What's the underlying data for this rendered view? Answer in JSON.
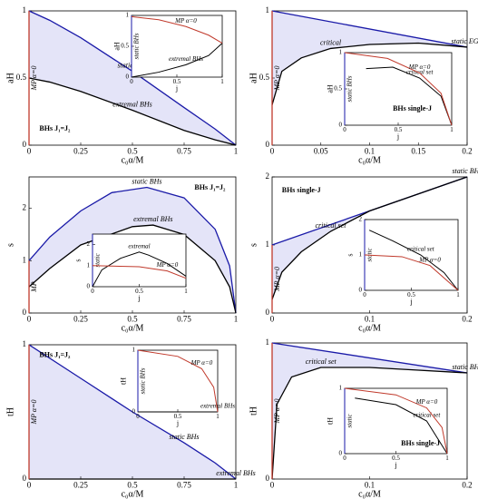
{
  "chart_data": [
    {
      "type": "line",
      "xlim": [
        0,
        1
      ],
      "ylim": [
        0,
        1
      ],
      "xticks": [
        0,
        0.25,
        0.5,
        0.75,
        1
      ],
      "yticks": [
        0,
        0.5,
        1
      ],
      "xlabel": "c₀α/M",
      "ylabel": "aH",
      "fill_color": "#e4e4f8",
      "annotations": [
        "BHs J₁=J₂"
      ],
      "series": [
        {
          "name": "static BHs",
          "color": "#1a1aa8",
          "x": [
            0,
            0.1,
            0.25,
            0.5,
            0.75,
            0.9,
            1
          ],
          "values": [
            1,
            0.93,
            0.8,
            0.55,
            0.28,
            0.12,
            0
          ]
        },
        {
          "name": "extremal BHs",
          "color": "#000000",
          "x": [
            0,
            0.1,
            0.25,
            0.5,
            0.75,
            0.9,
            1
          ],
          "values": [
            0.5,
            0.47,
            0.4,
            0.26,
            0.11,
            0.04,
            0
          ]
        },
        {
          "name": "MP α=0",
          "color": "#c0392b",
          "x": [
            0,
            0
          ],
          "values": [
            0,
            1
          ]
        }
      ]
    },
    {
      "type": "line",
      "xlim": [
        0,
        1
      ],
      "ylim": [
        0,
        1
      ],
      "xticks": [
        0,
        0.5,
        1
      ],
      "yticks": [
        0,
        0.5,
        1
      ],
      "xlabel": "j",
      "ylabel": "aH",
      "annotations": [],
      "series": [
        {
          "name": "static BHs",
          "color": "#1a1aa8",
          "x": [
            0,
            0
          ],
          "values": [
            0,
            1
          ]
        },
        {
          "name": "extremal BHs",
          "color": "#000000",
          "x": [
            0,
            0.3,
            0.6,
            0.85,
            1
          ],
          "values": [
            0,
            0.08,
            0.2,
            0.35,
            0.55
          ]
        },
        {
          "name": "MP α=0",
          "color": "#c0392b",
          "x": [
            0,
            0.3,
            0.6,
            0.85,
            1
          ],
          "values": [
            0.98,
            0.93,
            0.82,
            0.68,
            0.55
          ]
        }
      ]
    },
    {
      "type": "line",
      "xlim": [
        0,
        0.2
      ],
      "ylim": [
        0,
        1
      ],
      "xticks": [
        0,
        0.05,
        0.1,
        0.15,
        0.2
      ],
      "yticks": [
        0,
        0.5,
        1
      ],
      "xlabel": "c₀α/M",
      "ylabel": "aH",
      "fill_color": "#e4e4f8",
      "annotations": [],
      "series": [
        {
          "name": "static EGB",
          "color": "#1a1aa8",
          "x": [
            0,
            0.2
          ],
          "values": [
            1,
            0.73
          ]
        },
        {
          "name": "critical",
          "color": "#000000",
          "x": [
            0,
            0.01,
            0.03,
            0.06,
            0.1,
            0.15,
            0.2
          ],
          "values": [
            0.3,
            0.55,
            0.65,
            0.72,
            0.75,
            0.76,
            0.73
          ]
        },
        {
          "name": "MP α=0",
          "color": "#c0392b",
          "x": [
            0,
            0
          ],
          "values": [
            0,
            1
          ]
        }
      ]
    },
    {
      "type": "line",
      "xlim": [
        0,
        1
      ],
      "ylim": [
        0,
        1
      ],
      "xticks": [
        0,
        0.5,
        1
      ],
      "yticks": [
        0,
        0.5,
        1
      ],
      "xlabel": "j",
      "ylabel": "aH",
      "annotations": [
        "BHs single-J"
      ],
      "series": [
        {
          "name": "static BHs",
          "color": "#1a1aa8",
          "x": [
            0,
            0
          ],
          "values": [
            0,
            1
          ]
        },
        {
          "name": "critical set",
          "color": "#000000",
          "x": [
            0.2,
            0.45,
            0.7,
            0.9,
            1
          ],
          "values": [
            0.78,
            0.8,
            0.65,
            0.4,
            0
          ]
        },
        {
          "name": "MP α=0",
          "color": "#c0392b",
          "x": [
            0,
            0.4,
            0.7,
            0.9,
            1
          ],
          "values": [
            1,
            0.92,
            0.72,
            0.44,
            0
          ]
        }
      ]
    },
    {
      "type": "line",
      "xlim": [
        0,
        1
      ],
      "ylim": [
        0,
        2.6
      ],
      "xticks": [
        0,
        0.25,
        0.5,
        0.75,
        1
      ],
      "yticks": [
        0,
        1,
        2
      ],
      "xlabel": "c₀α/M",
      "ylabel": "s",
      "fill_color": "#e4e4f8",
      "annotations": [
        "BHs J₁=J₂"
      ],
      "series": [
        {
          "name": "static BHs",
          "color": "#1a1aa8",
          "x": [
            0,
            0.1,
            0.25,
            0.4,
            0.57,
            0.75,
            0.9,
            0.97,
            1
          ],
          "values": [
            1,
            1.45,
            1.95,
            2.3,
            2.4,
            2.2,
            1.6,
            0.9,
            0
          ]
        },
        {
          "name": "extremal BHs",
          "color": "#000000",
          "x": [
            0,
            0.1,
            0.25,
            0.5,
            0.6,
            0.75,
            0.9,
            0.97,
            1
          ],
          "values": [
            0.5,
            0.85,
            1.3,
            1.65,
            1.68,
            1.5,
            1,
            0.5,
            0
          ]
        },
        {
          "name": "MP",
          "color": "#c0392b",
          "x": [
            0,
            0
          ],
          "values": [
            0,
            1
          ]
        }
      ]
    },
    {
      "type": "line",
      "xlim": [
        0,
        1
      ],
      "ylim": [
        0,
        2.5
      ],
      "xticks": [
        0,
        0.5,
        1
      ],
      "yticks": [
        0,
        1,
        2
      ],
      "xlabel": "j",
      "ylabel": "s",
      "annotations": [],
      "series": [
        {
          "name": "static",
          "color": "#1a1aa8",
          "x": [
            0,
            0
          ],
          "values": [
            0,
            2.5
          ]
        },
        {
          "name": "extremal",
          "color": "#000000",
          "x": [
            0,
            0.1,
            0.3,
            0.5,
            0.6,
            0.8,
            1
          ],
          "values": [
            0,
            0.8,
            1.35,
            1.65,
            1.5,
            1.1,
            0.5
          ]
        },
        {
          "name": "MP α=0",
          "color": "#c0392b",
          "x": [
            0,
            0.5,
            0.8,
            1
          ],
          "values": [
            1,
            0.95,
            0.75,
            0.4
          ]
        }
      ]
    },
    {
      "type": "line",
      "xlim": [
        0,
        0.2
      ],
      "ylim": [
        0,
        2
      ],
      "xticks": [
        0,
        0.1,
        0.2
      ],
      "yticks": [
        0,
        1,
        2
      ],
      "xlabel": "c₀α/M",
      "ylabel": "s",
      "fill_color": "#e4e4f8",
      "annotations": [
        "BHs single-J"
      ],
      "series": [
        {
          "name": "static BHs",
          "color": "#1a1aa8",
          "x": [
            0,
            0.2
          ],
          "values": [
            1,
            2
          ]
        },
        {
          "name": "critical set",
          "color": "#000000",
          "x": [
            0,
            0.01,
            0.03,
            0.06,
            0.1,
            0.15,
            0.2
          ],
          "values": [
            0.2,
            0.6,
            0.9,
            1.2,
            1.5,
            1.75,
            2
          ]
        },
        {
          "name": "MP α=0",
          "color": "#c0392b",
          "x": [
            0,
            0
          ],
          "values": [
            0,
            1
          ]
        }
      ]
    },
    {
      "type": "line",
      "xlim": [
        0,
        1
      ],
      "ylim": [
        0,
        2
      ],
      "xticks": [
        0,
        0.5,
        1
      ],
      "yticks": [
        0,
        1,
        2
      ],
      "xlabel": "j",
      "ylabel": "s",
      "annotations": [],
      "series": [
        {
          "name": "static",
          "color": "#1a1aa8",
          "x": [
            0,
            0
          ],
          "values": [
            0,
            2
          ]
        },
        {
          "name": "critical set",
          "color": "#000000",
          "x": [
            0.05,
            0.3,
            0.6,
            0.85,
            1
          ],
          "values": [
            1.7,
            1.4,
            1,
            0.5,
            0
          ]
        },
        {
          "name": "MP α=0",
          "color": "#c0392b",
          "x": [
            0,
            0.4,
            0.7,
            1
          ],
          "values": [
            1,
            0.95,
            0.7,
            0
          ]
        }
      ]
    },
    {
      "type": "line",
      "xlim": [
        0,
        1
      ],
      "ylim": [
        0,
        1
      ],
      "xticks": [
        0,
        0.25,
        0.5,
        0.75,
        1
      ],
      "yticks": [
        0,
        1
      ],
      "xlabel": "c₀α/M",
      "ylabel": "tH",
      "fill_color": "#e4e4f8",
      "annotations": [
        "BHs J₁=J₂"
      ],
      "series": [
        {
          "name": "static BHs",
          "color": "#1a1aa8",
          "x": [
            0,
            0.25,
            0.5,
            0.75,
            0.9,
            1
          ],
          "values": [
            1,
            0.75,
            0.5,
            0.27,
            0.12,
            0
          ]
        },
        {
          "name": "extremal BHs",
          "color": "#000000",
          "x": [
            0,
            1
          ],
          "values": [
            0,
            0
          ]
        },
        {
          "name": "MP α=0",
          "color": "#c0392b",
          "x": [
            0,
            0
          ],
          "values": [
            0,
            1
          ]
        }
      ]
    },
    {
      "type": "line",
      "xlim": [
        0,
        1
      ],
      "ylim": [
        0,
        1
      ],
      "xticks": [
        0,
        0.5,
        1
      ],
      "yticks": [
        0,
        1
      ],
      "xlabel": "j",
      "ylabel": "tH",
      "annotations": [],
      "series": [
        {
          "name": "static BHs",
          "color": "#1a1aa8",
          "x": [
            0,
            0
          ],
          "values": [
            0,
            1
          ]
        },
        {
          "name": "extremal BHs",
          "color": "#000000",
          "x": [
            0,
            1
          ],
          "values": [
            0,
            0
          ]
        },
        {
          "name": "MP α=0",
          "color": "#c0392b",
          "x": [
            0,
            0.5,
            0.8,
            0.95,
            1
          ],
          "values": [
            1,
            0.9,
            0.7,
            0.4,
            0
          ]
        }
      ]
    },
    {
      "type": "line",
      "xlim": [
        0,
        0.2
      ],
      "ylim": [
        0,
        1
      ],
      "xticks": [
        0,
        0.1,
        0.2
      ],
      "yticks": [
        0,
        1
      ],
      "xlabel": "c₀α/M",
      "ylabel": "tH",
      "fill_color": "#e4e4f8",
      "annotations": [],
      "series": [
        {
          "name": "static BHs",
          "color": "#1a1aa8",
          "x": [
            0,
            0.2
          ],
          "values": [
            1,
            0.78
          ]
        },
        {
          "name": "critical set",
          "color": "#000000",
          "x": [
            0,
            0.005,
            0.02,
            0.05,
            0.1,
            0.15,
            0.2
          ],
          "values": [
            0,
            0.55,
            0.75,
            0.82,
            0.82,
            0.8,
            0.78
          ]
        },
        {
          "name": "MP α=0",
          "color": "#c0392b",
          "x": [
            0,
            0
          ],
          "values": [
            0,
            1
          ]
        }
      ]
    },
    {
      "type": "line",
      "xlim": [
        0,
        1
      ],
      "ylim": [
        0,
        1
      ],
      "xticks": [
        0,
        0.5,
        1
      ],
      "yticks": [
        0,
        1
      ],
      "xlabel": "j",
      "ylabel": "tH",
      "annotations": [
        "BHs single-J"
      ],
      "series": [
        {
          "name": "static",
          "color": "#1a1aa8",
          "x": [
            0,
            0
          ],
          "values": [
            0,
            1
          ]
        },
        {
          "name": "critical set",
          "color": "#000000",
          "x": [
            0.1,
            0.5,
            0.8,
            1
          ],
          "values": [
            0.85,
            0.75,
            0.5,
            0
          ]
        },
        {
          "name": "MP α=0",
          "color": "#c0392b",
          "x": [
            0,
            0.5,
            0.8,
            0.95,
            1
          ],
          "values": [
            1,
            0.9,
            0.7,
            0.4,
            0
          ]
        }
      ]
    }
  ]
}
